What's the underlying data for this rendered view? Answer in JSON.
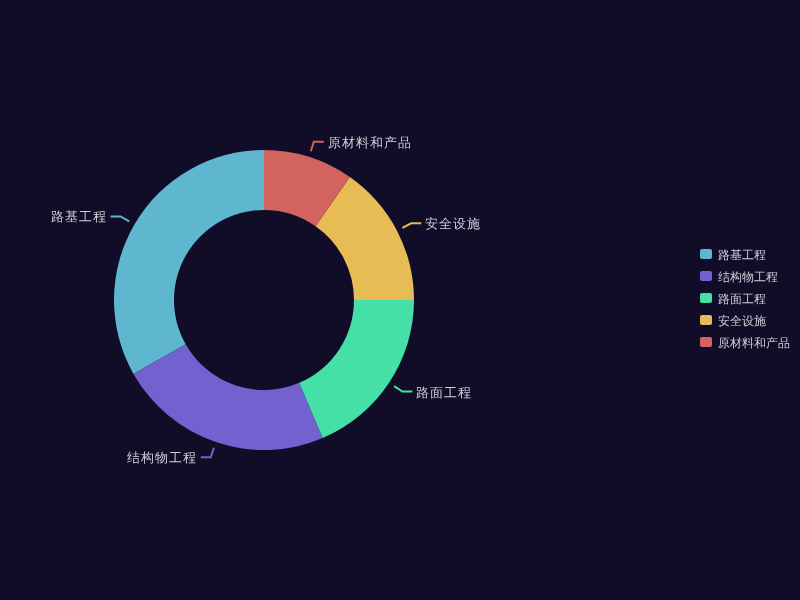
{
  "chart_data": {
    "type": "donut",
    "categories": [
      "路基工程",
      "结构物工程",
      "路面工程",
      "安全设施",
      "原材料和产品"
    ],
    "values": [
      33.2,
      23.2,
      18.6,
      15.3,
      9.7
    ],
    "colors": [
      "#5fb7cf",
      "#7262d0",
      "#45e0a7",
      "#e8bc54",
      "#d2635f"
    ],
    "legend": "right"
  }
}
